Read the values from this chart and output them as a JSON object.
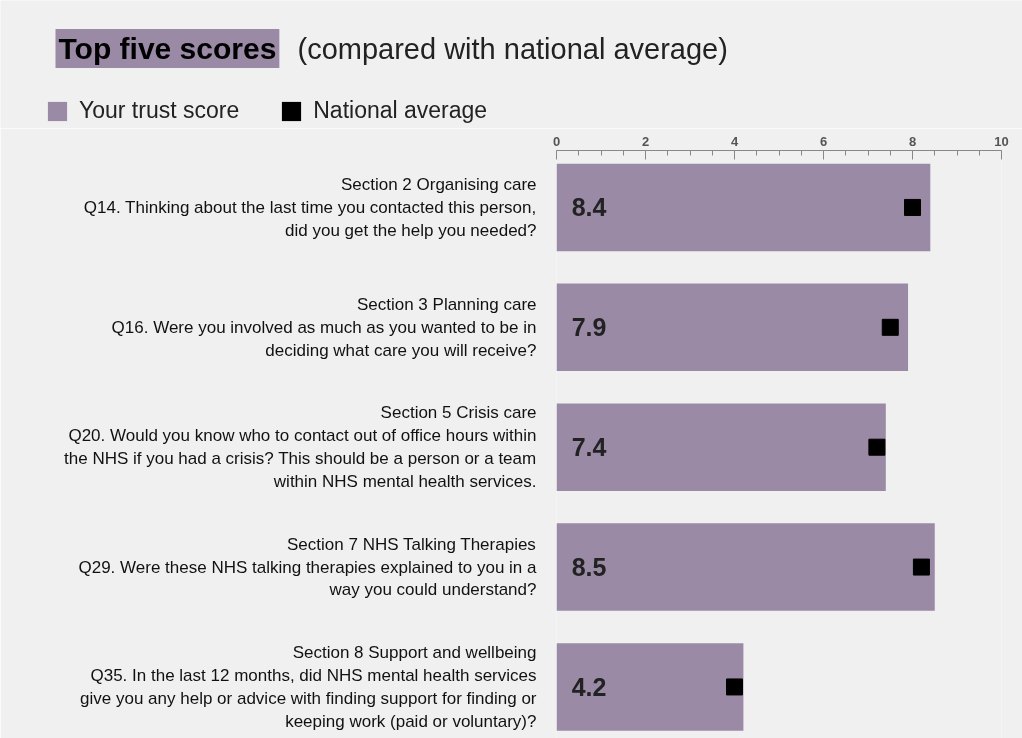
{
  "chart_data": {
    "type": "bar",
    "orientation": "horizontal",
    "title": "Top five scores",
    "subtitle": "(compared with national average)",
    "categories": [
      "Section 2 Organising care\nQ14. Thinking about the last time you contacted this person,\ndid you get the help you needed?",
      "Section 3 Planning care\nQ16. Were you involved as much as you wanted to be in\ndeciding what care you will receive?",
      "Section 5 Crisis care\nQ20. Would you know who to contact out of office hours within\nthe NHS if you had a crisis? This should be a person or a team\nwithin NHS mental health services.",
      "Section 7 NHS Talking Therapies\nQ29. Were these NHS talking therapies explained to you in a\nway you could understand?",
      "Section 8 Support and wellbeing\nQ35. In the last 12 months, did NHS mental health services\ngive you any help or advice with finding support for finding or\nkeeping work (paid or voluntary)?"
    ],
    "series": [
      {
        "name": "Your trust score",
        "type": "bar",
        "color": "#9b8aa6",
        "values": [
          8.4,
          7.9,
          7.4,
          8.5,
          4.2
        ],
        "value_labels": [
          "8.4",
          "7.9",
          "7.4",
          "8.5",
          "4.2"
        ]
      },
      {
        "name": "National average",
        "type": "scatter",
        "color": "#000000",
        "values": [
          8.0,
          7.5,
          7.2,
          8.2,
          4.0
        ]
      }
    ],
    "xlim": [
      0,
      10
    ],
    "xticks": [
      0,
      2,
      4,
      6,
      8,
      10
    ],
    "grid": false,
    "legend": "top left",
    "marker": "square"
  }
}
